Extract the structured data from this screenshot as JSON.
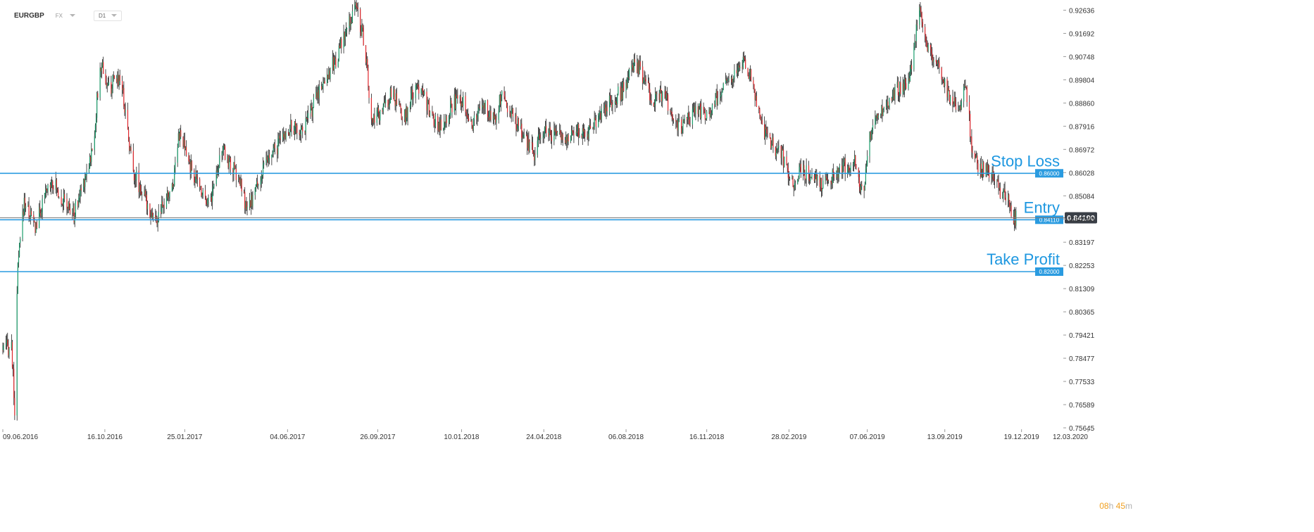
{
  "toolbar": {
    "symbol": "EURGBP",
    "instrument_type": "FX",
    "timeframe": "D1",
    "dropdown_icon": "chevron-down-icon"
  },
  "timer": {
    "hours": "08",
    "hours_unit": "h",
    "minutes": "45",
    "minutes_unit": "m"
  },
  "colors": {
    "up": "#1a9d6b",
    "down": "#e0262b",
    "wick": "#202020",
    "level_line": "#2a9be0",
    "level_text": "#1d97e0",
    "current_price_bg": "#3a3f47",
    "axis_text": "#333333"
  },
  "chart_data": {
    "type": "candlestick",
    "symbol": "EURGBP",
    "timeframe": "D1",
    "ylim": [
      0.75645,
      0.9305
    ],
    "yticks": [
      0.92636,
      0.91692,
      0.90748,
      0.89804,
      0.8886,
      0.87916,
      0.86972,
      0.86028,
      0.85084,
      0.8414,
      0.83197,
      0.82253,
      0.81309,
      0.80365,
      0.79421,
      0.78477,
      0.77533,
      0.76589,
      0.75645
    ],
    "ytick_labels": [
      "0.92636",
      "0.91692",
      "0.90748",
      "0.89804",
      "0.88860",
      "0.87916",
      "0.86972",
      "0.86028",
      "0.85084",
      "0.84140",
      "0.83197",
      "0.82253",
      "0.81309",
      "0.80365",
      "0.79421",
      "0.78477",
      "0.77533",
      "0.76589",
      "0.75645"
    ],
    "xlim": [
      "2016-06-09",
      "2020-03-12"
    ],
    "xticks": [
      "2016-06-09",
      "2016-10-16",
      "2017-01-25",
      "2017-06-04",
      "2017-09-26",
      "2018-01-10",
      "2018-04-24",
      "2018-08-06",
      "2018-11-16",
      "2019-02-28",
      "2019-06-07",
      "2019-09-13",
      "2019-12-19",
      "2020-03-12"
    ],
    "xtick_labels": [
      "09.06.2016",
      "16.10.2016",
      "25.01.2017",
      "04.06.2017",
      "26.09.2017",
      "10.01.2018",
      "24.04.2018",
      "06.08.2018",
      "16.11.2018",
      "28.02.2019",
      "07.06.2019",
      "13.09.2019",
      "19.12.2019",
      "12.03.2020"
    ],
    "price_path": [
      [
        "2016-06-09",
        0.788
      ],
      [
        "2016-06-20",
        0.79
      ],
      [
        "2016-06-24",
        0.764
      ],
      [
        "2016-06-28",
        0.822
      ],
      [
        "2016-07-06",
        0.849
      ],
      [
        "2016-07-20",
        0.838
      ],
      [
        "2016-08-09",
        0.858
      ],
      [
        "2016-08-24",
        0.849
      ],
      [
        "2016-09-07",
        0.843
      ],
      [
        "2016-09-20",
        0.858
      ],
      [
        "2016-10-01",
        0.87
      ],
      [
        "2016-10-07",
        0.893
      ],
      [
        "2016-10-12",
        0.905
      ],
      [
        "2016-10-20",
        0.894
      ],
      [
        "2016-11-05",
        0.9
      ],
      [
        "2016-11-20",
        0.862
      ],
      [
        "2016-12-05",
        0.85
      ],
      [
        "2016-12-20",
        0.84
      ],
      [
        "2017-01-10",
        0.855
      ],
      [
        "2017-01-17",
        0.877
      ],
      [
        "2017-02-02",
        0.862
      ],
      [
        "2017-02-12",
        0.855
      ],
      [
        "2017-02-26",
        0.848
      ],
      [
        "2017-03-12",
        0.87
      ],
      [
        "2017-03-25",
        0.863
      ],
      [
        "2017-04-05",
        0.856
      ],
      [
        "2017-04-14",
        0.844
      ],
      [
        "2017-04-25",
        0.854
      ],
      [
        "2017-05-08",
        0.864
      ],
      [
        "2017-05-22",
        0.871
      ],
      [
        "2017-06-04",
        0.878
      ],
      [
        "2017-06-25",
        0.878
      ],
      [
        "2017-07-15",
        0.895
      ],
      [
        "2017-08-05",
        0.907
      ],
      [
        "2017-08-20",
        0.92
      ],
      [
        "2017-08-29",
        0.929
      ],
      [
        "2017-09-10",
        0.912
      ],
      [
        "2017-09-18",
        0.88
      ],
      [
        "2017-10-01",
        0.885
      ],
      [
        "2017-10-15",
        0.893
      ],
      [
        "2017-10-28",
        0.881
      ],
      [
        "2017-11-08",
        0.891
      ],
      [
        "2017-11-20",
        0.897
      ],
      [
        "2017-12-02",
        0.883
      ],
      [
        "2017-12-15",
        0.879
      ],
      [
        "2017-12-28",
        0.888
      ],
      [
        "2018-01-10",
        0.891
      ],
      [
        "2018-01-24",
        0.88
      ],
      [
        "2018-02-06",
        0.888
      ],
      [
        "2018-02-20",
        0.882
      ],
      [
        "2018-03-02",
        0.892
      ],
      [
        "2018-03-16",
        0.883
      ],
      [
        "2018-03-30",
        0.875
      ],
      [
        "2018-04-12",
        0.868
      ],
      [
        "2018-04-24",
        0.878
      ],
      [
        "2018-05-08",
        0.876
      ],
      [
        "2018-05-22",
        0.874
      ],
      [
        "2018-06-06",
        0.878
      ],
      [
        "2018-06-20",
        0.877
      ],
      [
        "2018-07-04",
        0.884
      ],
      [
        "2018-07-18",
        0.89
      ],
      [
        "2018-08-01",
        0.893
      ],
      [
        "2018-08-15",
        0.903
      ],
      [
        "2018-08-22",
        0.903
      ],
      [
        "2018-08-29",
        0.897
      ],
      [
        "2018-09-10",
        0.89
      ],
      [
        "2018-09-24",
        0.892
      ],
      [
        "2018-10-06",
        0.878
      ],
      [
        "2018-10-20",
        0.88
      ],
      [
        "2018-11-04",
        0.887
      ],
      [
        "2018-11-16",
        0.883
      ],
      [
        "2018-12-01",
        0.892
      ],
      [
        "2018-12-15",
        0.898
      ],
      [
        "2019-01-03",
        0.905
      ],
      [
        "2019-01-13",
        0.897
      ],
      [
        "2019-01-24",
        0.879
      ],
      [
        "2019-02-06",
        0.873
      ],
      [
        "2019-02-20",
        0.866
      ],
      [
        "2019-03-05",
        0.855
      ],
      [
        "2019-03-15",
        0.861
      ],
      [
        "2019-03-28",
        0.859
      ],
      [
        "2019-04-10",
        0.856
      ],
      [
        "2019-04-24",
        0.858
      ],
      [
        "2019-05-08",
        0.863
      ],
      [
        "2019-05-22",
        0.865
      ],
      [
        "2019-06-02",
        0.851
      ],
      [
        "2019-06-12",
        0.879
      ],
      [
        "2019-06-26",
        0.886
      ],
      [
        "2019-07-10",
        0.893
      ],
      [
        "2019-07-24",
        0.896
      ],
      [
        "2019-08-04",
        0.905
      ],
      [
        "2019-08-08",
        0.918
      ],
      [
        "2019-08-12",
        0.925
      ],
      [
        "2019-08-22",
        0.91
      ],
      [
        "2019-09-05",
        0.903
      ],
      [
        "2019-09-20",
        0.891
      ],
      [
        "2019-10-02",
        0.887
      ],
      [
        "2019-10-10",
        0.896
      ],
      [
        "2019-10-18",
        0.866
      ],
      [
        "2019-10-28",
        0.862
      ],
      [
        "2019-11-08",
        0.86
      ],
      [
        "2019-11-20",
        0.854
      ],
      [
        "2019-12-02",
        0.848
      ],
      [
        "2019-12-08",
        0.841
      ],
      [
        "2019-12-12",
        0.842
      ]
    ],
    "current_price": {
      "value": 0.8419,
      "label": "0.84190"
    },
    "levels": [
      {
        "name": "Stop Loss",
        "value": 0.86,
        "label": "0.86000"
      },
      {
        "name": "Entry",
        "value": 0.8411,
        "label": "0.84110"
      },
      {
        "name": "Take Profit",
        "value": 0.82,
        "label": "0.82000"
      }
    ]
  }
}
